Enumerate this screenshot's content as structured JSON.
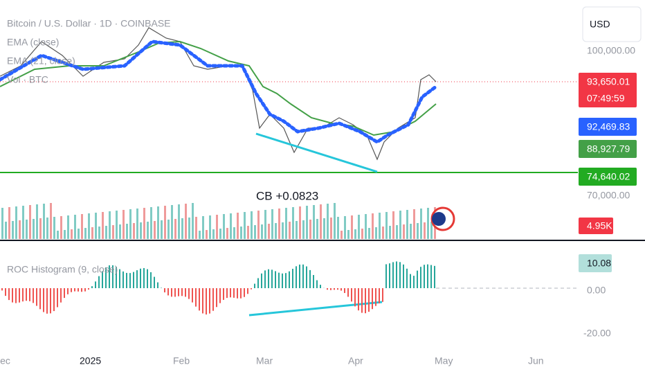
{
  "legend": {
    "symbol": "Bitcoin / U.S. Dollar · 1D · COINBASE",
    "ema_1": "EMA (close)",
    "ema_2": "EMA (21, close)",
    "volume": "Vol · BTC",
    "roc": "ROC Histogram (9, close)"
  },
  "annotation": "CB +0.0823",
  "currency": "USD",
  "price_scale": [
    "100,000.00",
    "70,000.00"
  ],
  "price_badges": {
    "last": "93,650.01",
    "countdown": "07:49:59",
    "ema_blue": "92,469.83",
    "ema_green": "88,927.79",
    "support": "74,640.02"
  },
  "volume_badge": "4.95K",
  "roc_scale": {
    "current": "10.08",
    "zero": "0.00",
    "low": "-20.00"
  },
  "time_axis": [
    "Dec",
    "2025",
    "Feb",
    "Mar",
    "Apr",
    "May",
    "Jun"
  ]
}
